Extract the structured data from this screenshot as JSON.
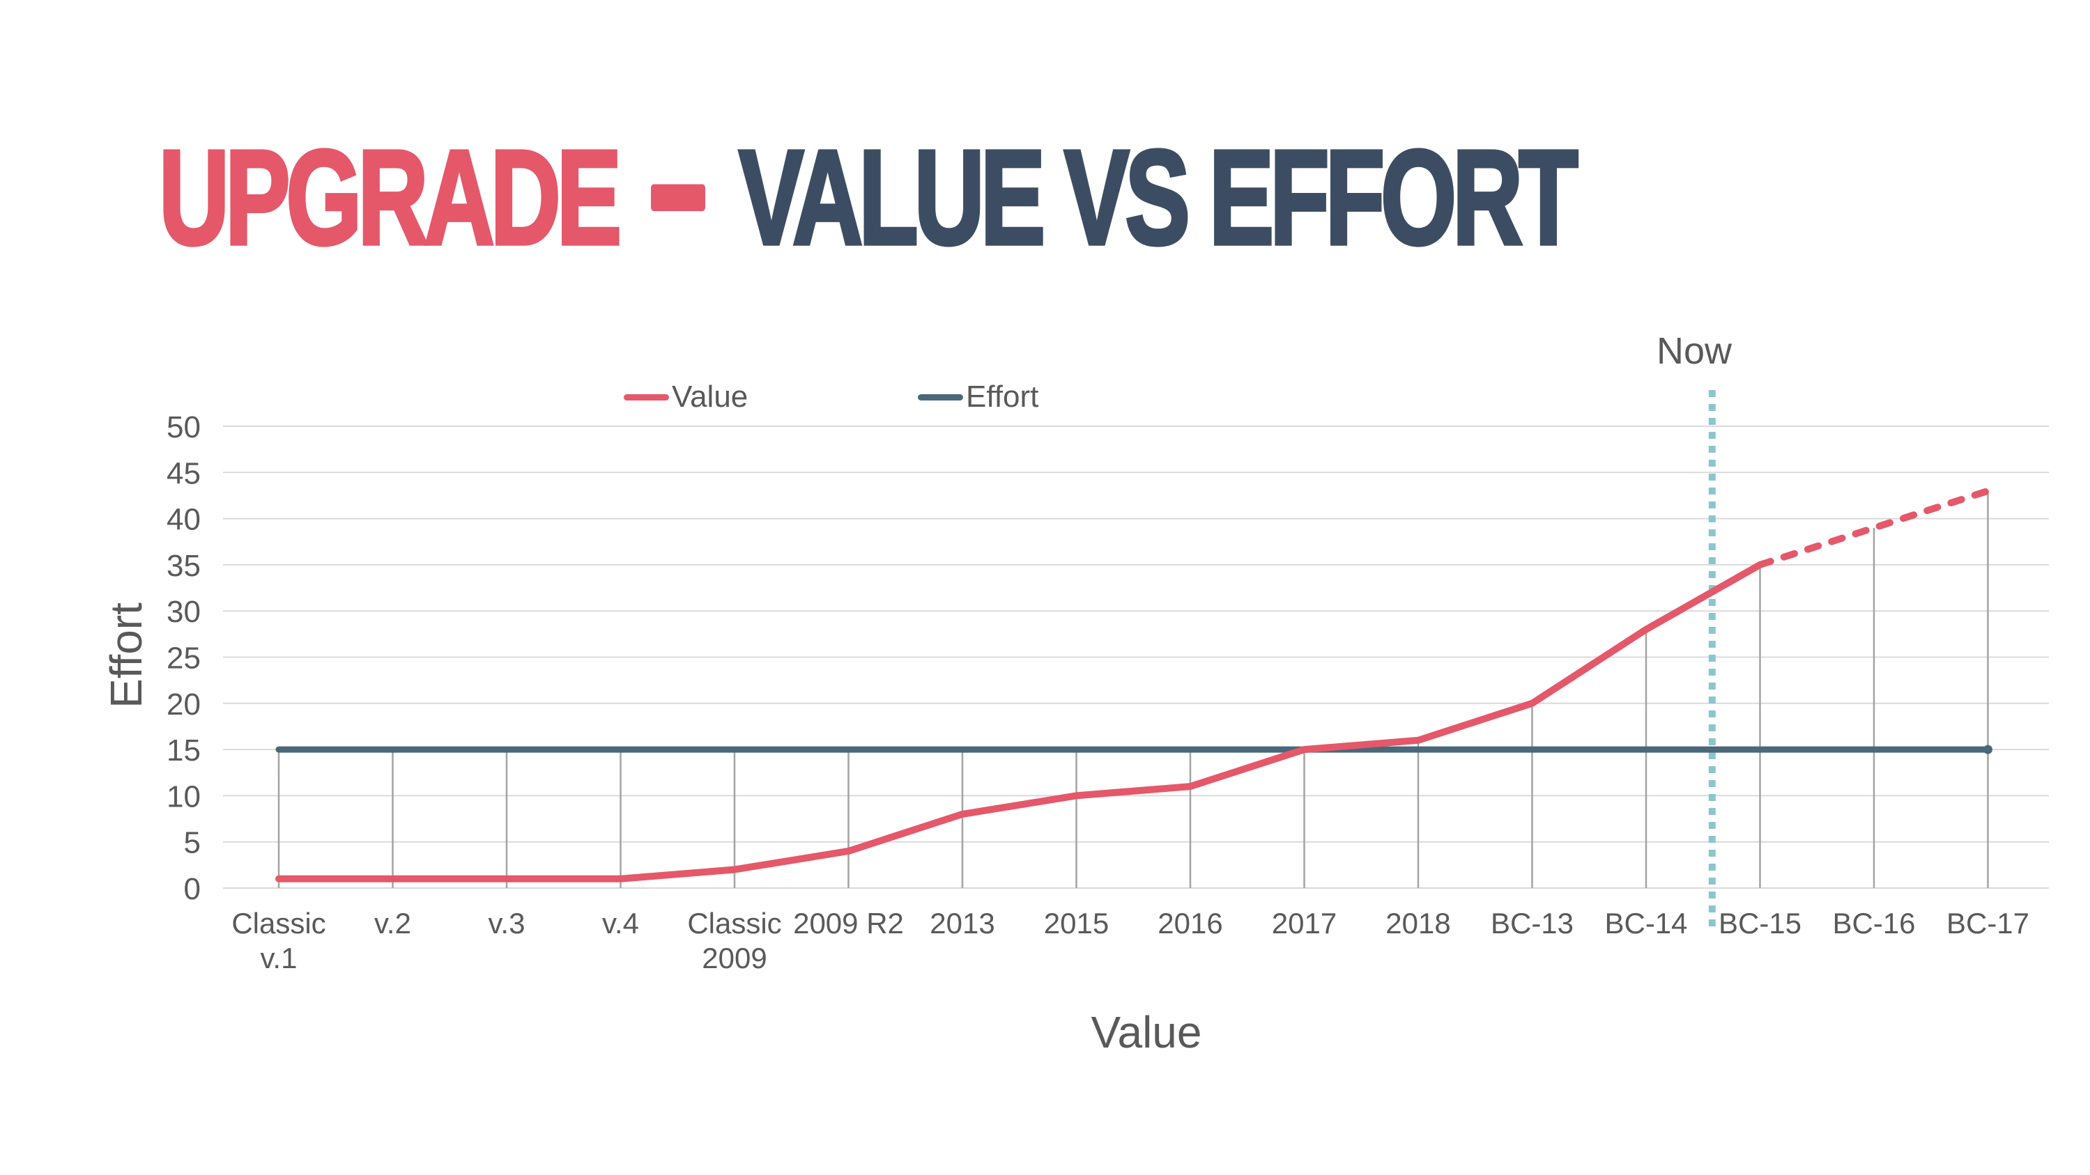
{
  "slide": {
    "title": {
      "part1": "UPGRADE",
      "separator": "-",
      "part2": "VALUE VS EFFORT",
      "part1_color": "#E4586A",
      "part2_color": "#3C4D63"
    }
  },
  "chart_data": {
    "type": "line",
    "categories": [
      "Classic\nv.1",
      "v.2",
      "v.3",
      "v.4",
      "Classic\n2009",
      "2009 R2",
      "2013",
      "2015",
      "2016",
      "2017",
      "2018",
      "BC-13",
      "BC-14",
      "BC-15",
      "BC-16",
      "BC-17"
    ],
    "series": [
      {
        "name": "Value",
        "color": "#E4586A",
        "values": [
          1,
          1,
          1,
          1,
          2,
          4,
          8,
          10,
          11,
          15,
          16,
          20,
          28,
          35,
          39,
          43
        ],
        "dashed_from": "BC-15"
      },
      {
        "name": "Effort",
        "color": "#49687A",
        "values": [
          15,
          15,
          15,
          15,
          15,
          15,
          15,
          15,
          15,
          15,
          15,
          15,
          15,
          15,
          15,
          15
        ],
        "end_dot": true
      }
    ],
    "xlabel": "Value",
    "ylabel": "Effort",
    "ylim": [
      0,
      50
    ],
    "yticks": [
      0,
      5,
      10,
      15,
      20,
      25,
      30,
      35,
      40,
      45,
      50
    ],
    "grid": true,
    "drop_lines": true,
    "legend_position": "top",
    "annotations": [
      {
        "label": "Now",
        "type": "vertical-dotted-line",
        "between": [
          "BC-14",
          "BC-15"
        ],
        "color": "#8BC6CF"
      }
    ],
    "colors": {
      "gridline": "#DADADA",
      "drop_line": "#A3A3A3",
      "tick_text": "#595959"
    }
  }
}
